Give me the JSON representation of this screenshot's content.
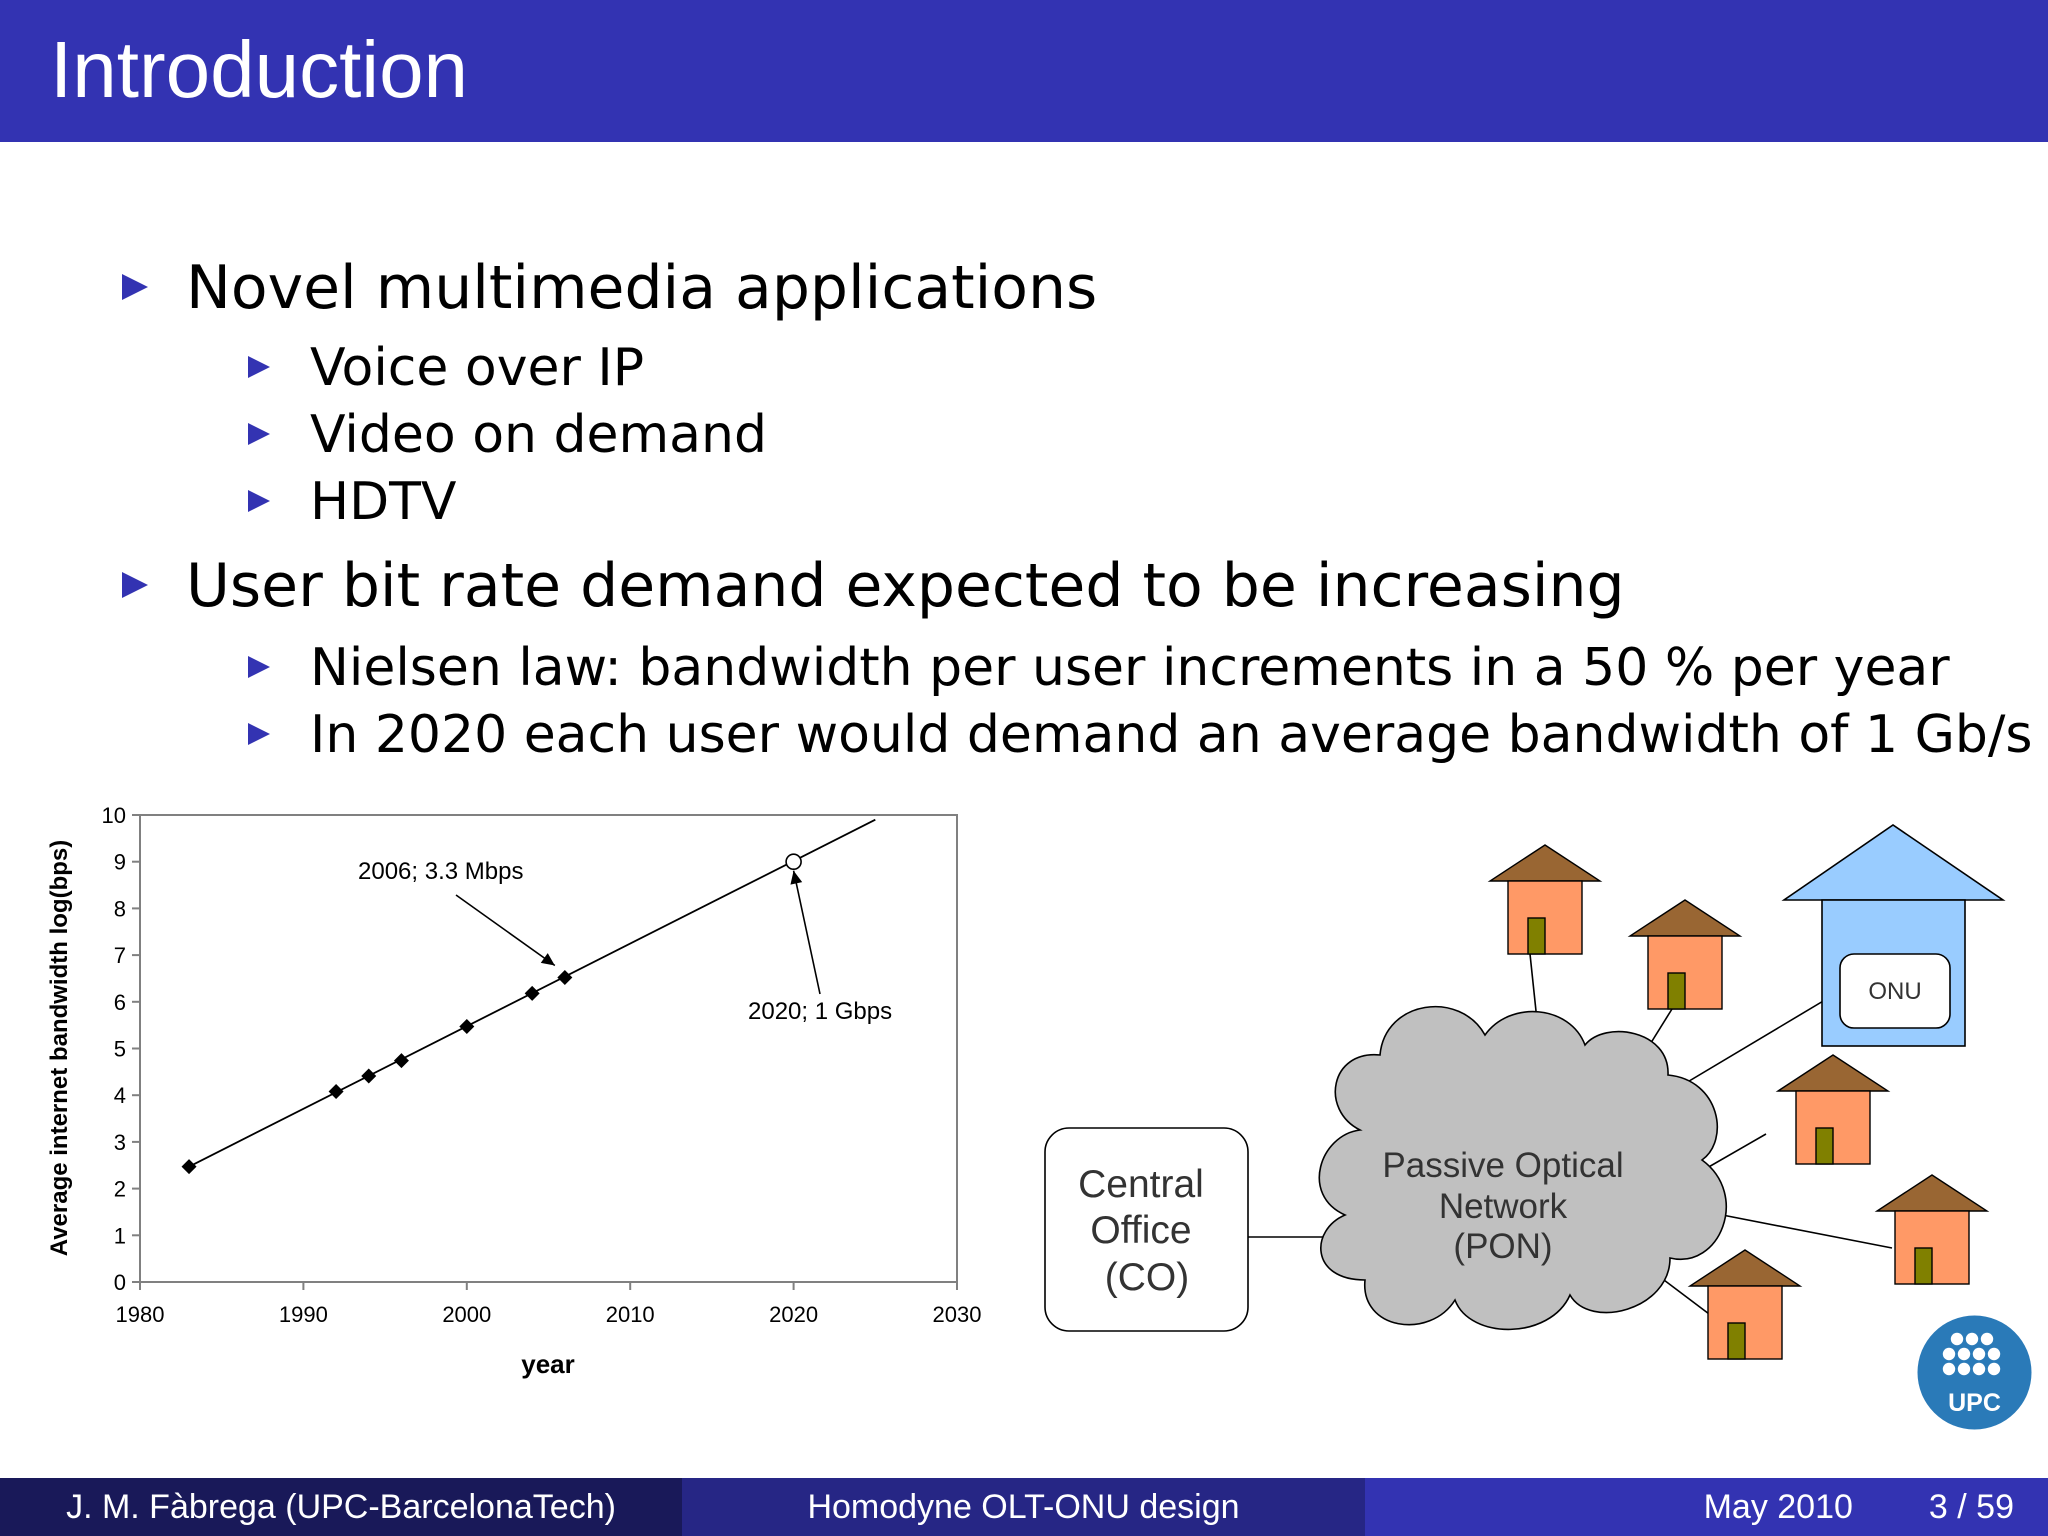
{
  "slide": {
    "title": "Introduction",
    "bullets": [
      {
        "text": "Novel multimedia applications",
        "sub": [
          "Voice over IP",
          "Video on demand",
          "HDTV"
        ]
      },
      {
        "text": "User bit rate demand expected to be increasing",
        "sub": [
          "Nielsen law: bandwidth per user increments in a 50 % per year",
          "In 2020 each user would demand an average bandwidth of 1 Gb/s"
        ]
      }
    ]
  },
  "chart_data": {
    "type": "scatter",
    "title": "",
    "xlabel": "year",
    "ylabel": "Average internet bandwidth log(bps)",
    "xlim": [
      1980,
      2030
    ],
    "ylim": [
      0,
      10
    ],
    "xticks": [
      "1980",
      "1990",
      "2000",
      "2010",
      "2020",
      "2030"
    ],
    "yticks": [
      "0",
      "1",
      "2",
      "3",
      "4",
      "5",
      "6",
      "7",
      "8",
      "9",
      "10"
    ],
    "grid": false,
    "series": [
      {
        "marker": "diamond",
        "x": [
          1983,
          1992,
          1994,
          1996,
          2000,
          2004,
          2006
        ],
        "y": [
          2.47,
          4.08,
          4.41,
          4.74,
          5.47,
          6.18,
          6.52
        ]
      },
      {
        "marker": "open-circle",
        "x": [
          2020
        ],
        "y": [
          9.0
        ]
      }
    ],
    "trendline": {
      "x": [
        1983,
        2025
      ],
      "y": [
        2.47,
        9.9
      ]
    },
    "annotations": [
      {
        "text": "2006; 3.3 Mbps",
        "x": 2006,
        "y": 6.52
      },
      {
        "text": "2020; 1 Gbps",
        "x": 2020,
        "y": 9.0
      }
    ],
    "colors": {
      "line": "#000000",
      "frame": "#808080"
    }
  },
  "diagram": {
    "central_office": [
      "Central",
      "Office",
      "(CO)"
    ],
    "cloud": [
      "Passive Optical",
      "Network",
      "(PON)"
    ],
    "onu": "ONU",
    "icons": [
      "house-icon",
      "building-icon",
      "cloud-icon",
      "upc-logo"
    ],
    "colors": {
      "house_wall": "#ff9966",
      "house_roof": "#996633",
      "door": "#808000",
      "building": "#99ccff",
      "cloud": "#c0c0c0"
    }
  },
  "logo": {
    "text": "UPC",
    "color": "#2a7ab8"
  },
  "footer": {
    "author": "J. M. Fàbrega  (UPC-BarcelonaTech)",
    "talk": "Homodyne OLT-ONU design",
    "date": "May 2010",
    "page": "3 / 59"
  }
}
